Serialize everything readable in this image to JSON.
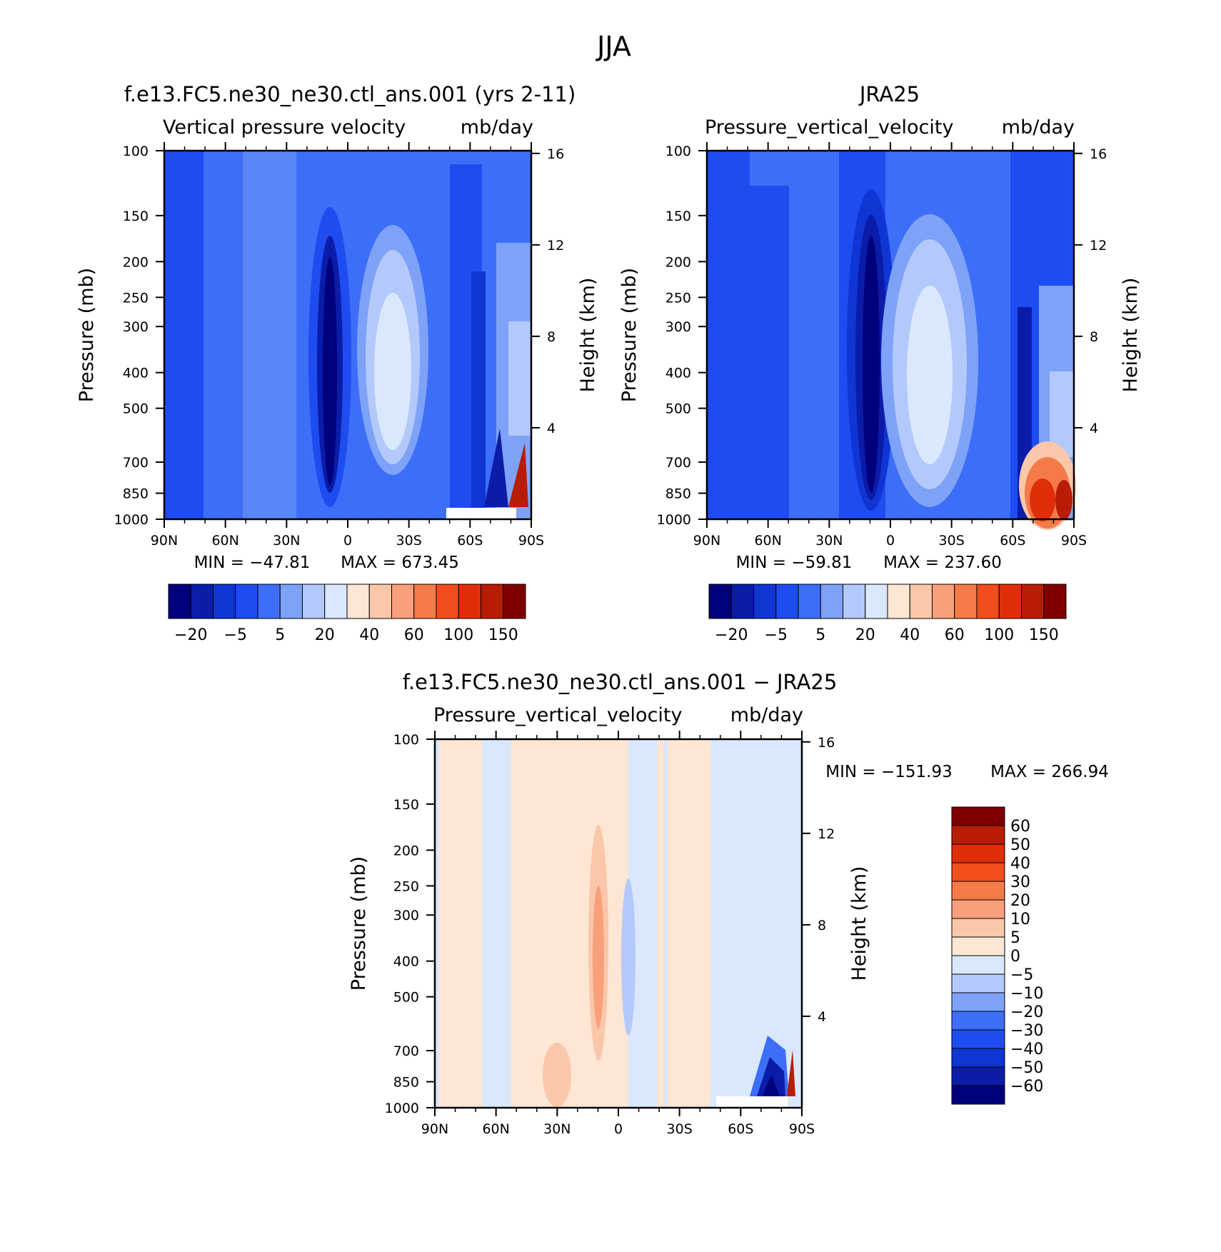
{
  "figure": {
    "title": "JJA"
  },
  "colors": {
    "abs_levels": [
      "#00007d",
      "#0a1ca8",
      "#0f35d4",
      "#1d4cf0",
      "#3d6ef8",
      "#7ea2f8",
      "#b3c9fb",
      "#d9e8fd",
      "#fde6d4",
      "#fbc7aa",
      "#f8a07b",
      "#f57a4a",
      "#f24d1d",
      "#e02e0a",
      "#b81c05",
      "#7f0000"
    ],
    "diff_levels": [
      "#7f0000",
      "#b81c05",
      "#e02e0a",
      "#f24d1d",
      "#f57a4a",
      "#f8a07b",
      "#fbc7aa",
      "#fde6d4",
      "#d9e8fd",
      "#b3c9fb",
      "#7ea2f8",
      "#3d6ef8",
      "#1d4cf0",
      "#0f35d4",
      "#0a1ca8",
      "#00007d"
    ]
  },
  "chart_data": [
    {
      "type": "heatmap",
      "title": "f.e13.FC5.ne30_ne30.ctl_ans.001 (yrs 2-11)",
      "variable": "Vertical pressure velocity",
      "units": "mb/day",
      "x_ticks": [
        "90N",
        "60N",
        "30N",
        "0",
        "30S",
        "60S",
        "90S"
      ],
      "x_values": [
        90,
        60,
        30,
        0,
        -30,
        -60,
        -90
      ],
      "y_ticks": [
        "100",
        "150",
        "200",
        "250",
        "300",
        "400",
        "500",
        "700",
        "850",
        "1000"
      ],
      "y_values": [
        100,
        150,
        200,
        250,
        300,
        400,
        500,
        700,
        850,
        1000
      ],
      "ylabel": "Pressure (mb)",
      "y2label": "Height (km)",
      "y2_ticks": [
        "16",
        "12",
        "8",
        "4"
      ],
      "y2_values": [
        16,
        12,
        8,
        4
      ],
      "yscale": "log",
      "min_label": "MIN = −47.81",
      "max_label": "MAX = 673.45",
      "min": -47.81,
      "max": 673.45,
      "colorbar_labels": [
        "−20",
        "−5",
        "5",
        "20",
        "40",
        "60",
        "100",
        "150"
      ],
      "field": [
        {
          "lat": 85,
          "value": 6
        },
        {
          "lat": 70,
          "value": -2
        },
        {
          "lat": 55,
          "value": 4
        },
        {
          "lat": 40,
          "value": 2
        },
        {
          "lat": 25,
          "value": -4
        },
        {
          "lat": 10,
          "value": -28
        },
        {
          "lat": -5,
          "value": 2
        },
        {
          "lat": -20,
          "value": 22
        },
        {
          "lat": -35,
          "value": 8
        },
        {
          "lat": -50,
          "value": -4
        },
        {
          "lat": -65,
          "value": -14
        },
        {
          "lat": -80,
          "value": 10
        }
      ]
    },
    {
      "type": "heatmap",
      "title": "JRA25",
      "variable": "Pressure_vertical_velocity",
      "units": "mb/day",
      "x_ticks": [
        "90N",
        "60N",
        "30N",
        "0",
        "30S",
        "60S",
        "90S"
      ],
      "x_values": [
        90,
        60,
        30,
        0,
        -30,
        -60,
        -90
      ],
      "y_ticks": [
        "100",
        "150",
        "200",
        "250",
        "300",
        "400",
        "500",
        "700",
        "850",
        "1000"
      ],
      "y_values": [
        100,
        150,
        200,
        250,
        300,
        400,
        500,
        700,
        850,
        1000
      ],
      "ylabel": "Pressure (mb)",
      "y2label": "Height (km)",
      "y2_ticks": [
        "16",
        "12",
        "8",
        "4"
      ],
      "y2_values": [
        16,
        12,
        8,
        4
      ],
      "yscale": "log",
      "min_label": "MIN = −59.81",
      "max_label": "MAX = 237.60",
      "min": -59.81,
      "max": 237.6,
      "colorbar_labels": [
        "−20",
        "−5",
        "5",
        "20",
        "40",
        "60",
        "100",
        "150"
      ],
      "field": [
        {
          "lat": 85,
          "value": 4
        },
        {
          "lat": 70,
          "value": -2
        },
        {
          "lat": 55,
          "value": 3
        },
        {
          "lat": 40,
          "value": 2
        },
        {
          "lat": 25,
          "value": -4
        },
        {
          "lat": 10,
          "value": -30
        },
        {
          "lat": -5,
          "value": 2
        },
        {
          "lat": -20,
          "value": 24
        },
        {
          "lat": -35,
          "value": 10
        },
        {
          "lat": -50,
          "value": -3
        },
        {
          "lat": -65,
          "value": -12
        },
        {
          "lat": -80,
          "value": 80
        }
      ]
    },
    {
      "type": "heatmap",
      "title": "f.e13.FC5.ne30_ne30.ctl_ans.001 − JRA25",
      "variable": "Pressure_vertical_velocity",
      "units": "mb/day",
      "x_ticks": [
        "90N",
        "60N",
        "30N",
        "0",
        "30S",
        "60S",
        "90S"
      ],
      "x_values": [
        90,
        60,
        30,
        0,
        -30,
        -60,
        -90
      ],
      "y_ticks": [
        "100",
        "150",
        "200",
        "250",
        "300",
        "400",
        "500",
        "700",
        "850",
        "1000"
      ],
      "y_values": [
        100,
        150,
        200,
        250,
        300,
        400,
        500,
        700,
        850,
        1000
      ],
      "ylabel": "Pressure (mb)",
      "y2label": "Height (km)",
      "y2_ticks": [
        "16",
        "12",
        "8",
        "4"
      ],
      "y2_values": [
        16,
        12,
        8,
        4
      ],
      "yscale": "log",
      "min_label": "MIN = −151.93",
      "max_label": "MAX = 266.94",
      "min": -151.93,
      "max": 266.94,
      "colorbar_labels": [
        "60",
        "50",
        "40",
        "30",
        "20",
        "10",
        "5",
        "0",
        "−5",
        "−10",
        "−20",
        "−30",
        "−40",
        "−50",
        "−60"
      ],
      "field": [
        {
          "lat": 85,
          "value": -2
        },
        {
          "lat": 70,
          "value": 2
        },
        {
          "lat": 55,
          "value": -2
        },
        {
          "lat": 40,
          "value": 2
        },
        {
          "lat": 25,
          "value": 4
        },
        {
          "lat": 10,
          "value": 12
        },
        {
          "lat": -5,
          "value": -4
        },
        {
          "lat": -20,
          "value": -2
        },
        {
          "lat": -35,
          "value": 2
        },
        {
          "lat": -50,
          "value": -2
        },
        {
          "lat": -65,
          "value": -30
        },
        {
          "lat": -80,
          "value": -60
        }
      ]
    }
  ]
}
